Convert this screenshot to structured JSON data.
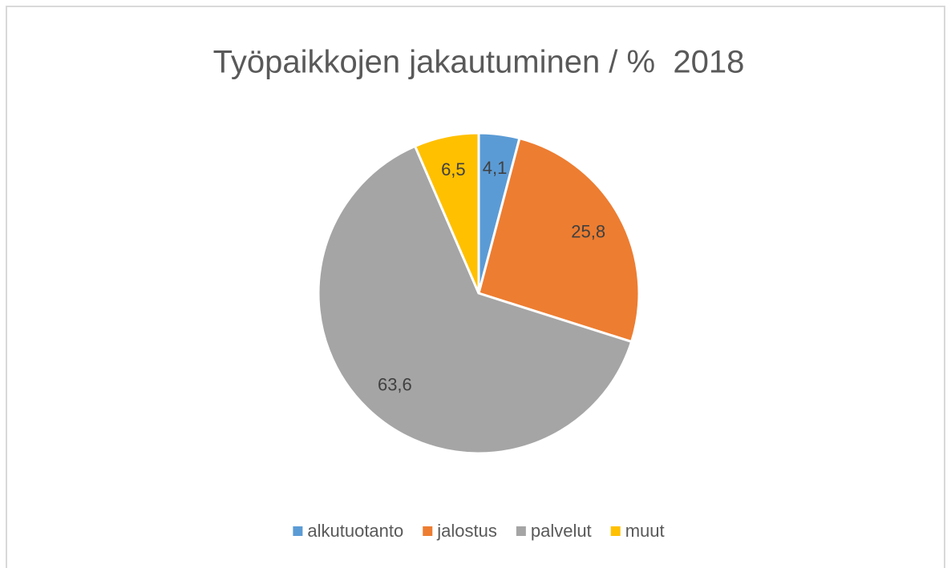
{
  "chart_data": {
    "type": "pie",
    "title": "Työpaikkojen jakautuminen / %  2018",
    "categories": [
      "alkutuotanto",
      "jalostus",
      "palvelut",
      "muut"
    ],
    "values": [
      4.1,
      25.8,
      63.6,
      6.5
    ],
    "value_labels": [
      "4,1",
      "25,8",
      "63,6",
      "6,5"
    ],
    "colors": [
      "#5b9bd5",
      "#ed7d31",
      "#a5a5a5",
      "#ffc000"
    ],
    "legend": "bottom"
  }
}
